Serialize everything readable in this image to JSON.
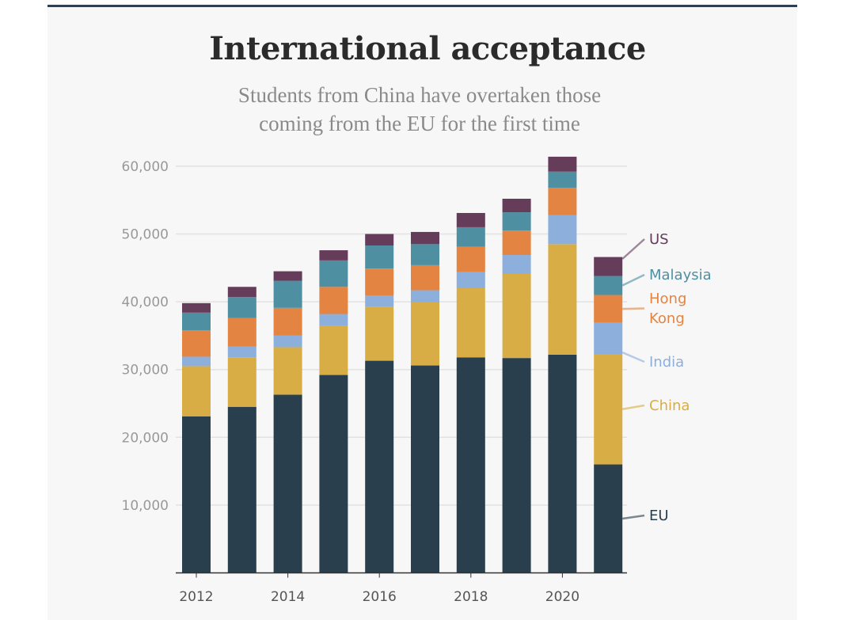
{
  "chart_data": {
    "type": "bar",
    "stacked": true,
    "title": "International acceptance",
    "subtitle": "Students from China have overtaken those coming from the EU for the first time",
    "categories": [
      "2012",
      "2013",
      "2014",
      "2015",
      "2016",
      "2017",
      "2018",
      "2019",
      "2020",
      "2021"
    ],
    "x_tick_labels": [
      "2012",
      "2014",
      "2016",
      "2018",
      "2020"
    ],
    "y_tick_labels": [
      "10,000",
      "20,000",
      "30,000",
      "40,000",
      "50,000",
      "60,000"
    ],
    "y_ticks": [
      10000,
      20000,
      30000,
      40000,
      50000,
      60000
    ],
    "ylim": [
      0,
      60000
    ],
    "xlabel": "",
    "ylabel": "",
    "grid": true,
    "legend_placement": "right",
    "series": [
      {
        "name": "EU",
        "color": "#2a3f4d",
        "values": [
          23100,
          24500,
          26300,
          29200,
          31300,
          30600,
          31800,
          31700,
          32200,
          16000
        ]
      },
      {
        "name": "China",
        "color": "#d8ad45",
        "values": [
          7400,
          7300,
          7000,
          7300,
          8000,
          9300,
          10200,
          12400,
          16300,
          16300
        ]
      },
      {
        "name": "India",
        "color": "#8cafdc",
        "values": [
          1400,
          1600,
          1700,
          1700,
          1600,
          1800,
          2400,
          2800,
          4300,
          4600
        ]
      },
      {
        "name": "Hong Kong",
        "color": "#e38443",
        "values": [
          3900,
          4200,
          4100,
          4000,
          4000,
          3700,
          3700,
          3600,
          4000,
          4100
        ]
      },
      {
        "name": "Malaysia",
        "color": "#4e8fa2",
        "values": [
          2600,
          3100,
          4000,
          3900,
          3400,
          3100,
          2900,
          2700,
          2400,
          2800
        ]
      },
      {
        "name": "US",
        "color": "#653c5a",
        "values": [
          1400,
          1500,
          1400,
          1500,
          1700,
          1800,
          2100,
          2000,
          2200,
          2800
        ]
      }
    ]
  }
}
